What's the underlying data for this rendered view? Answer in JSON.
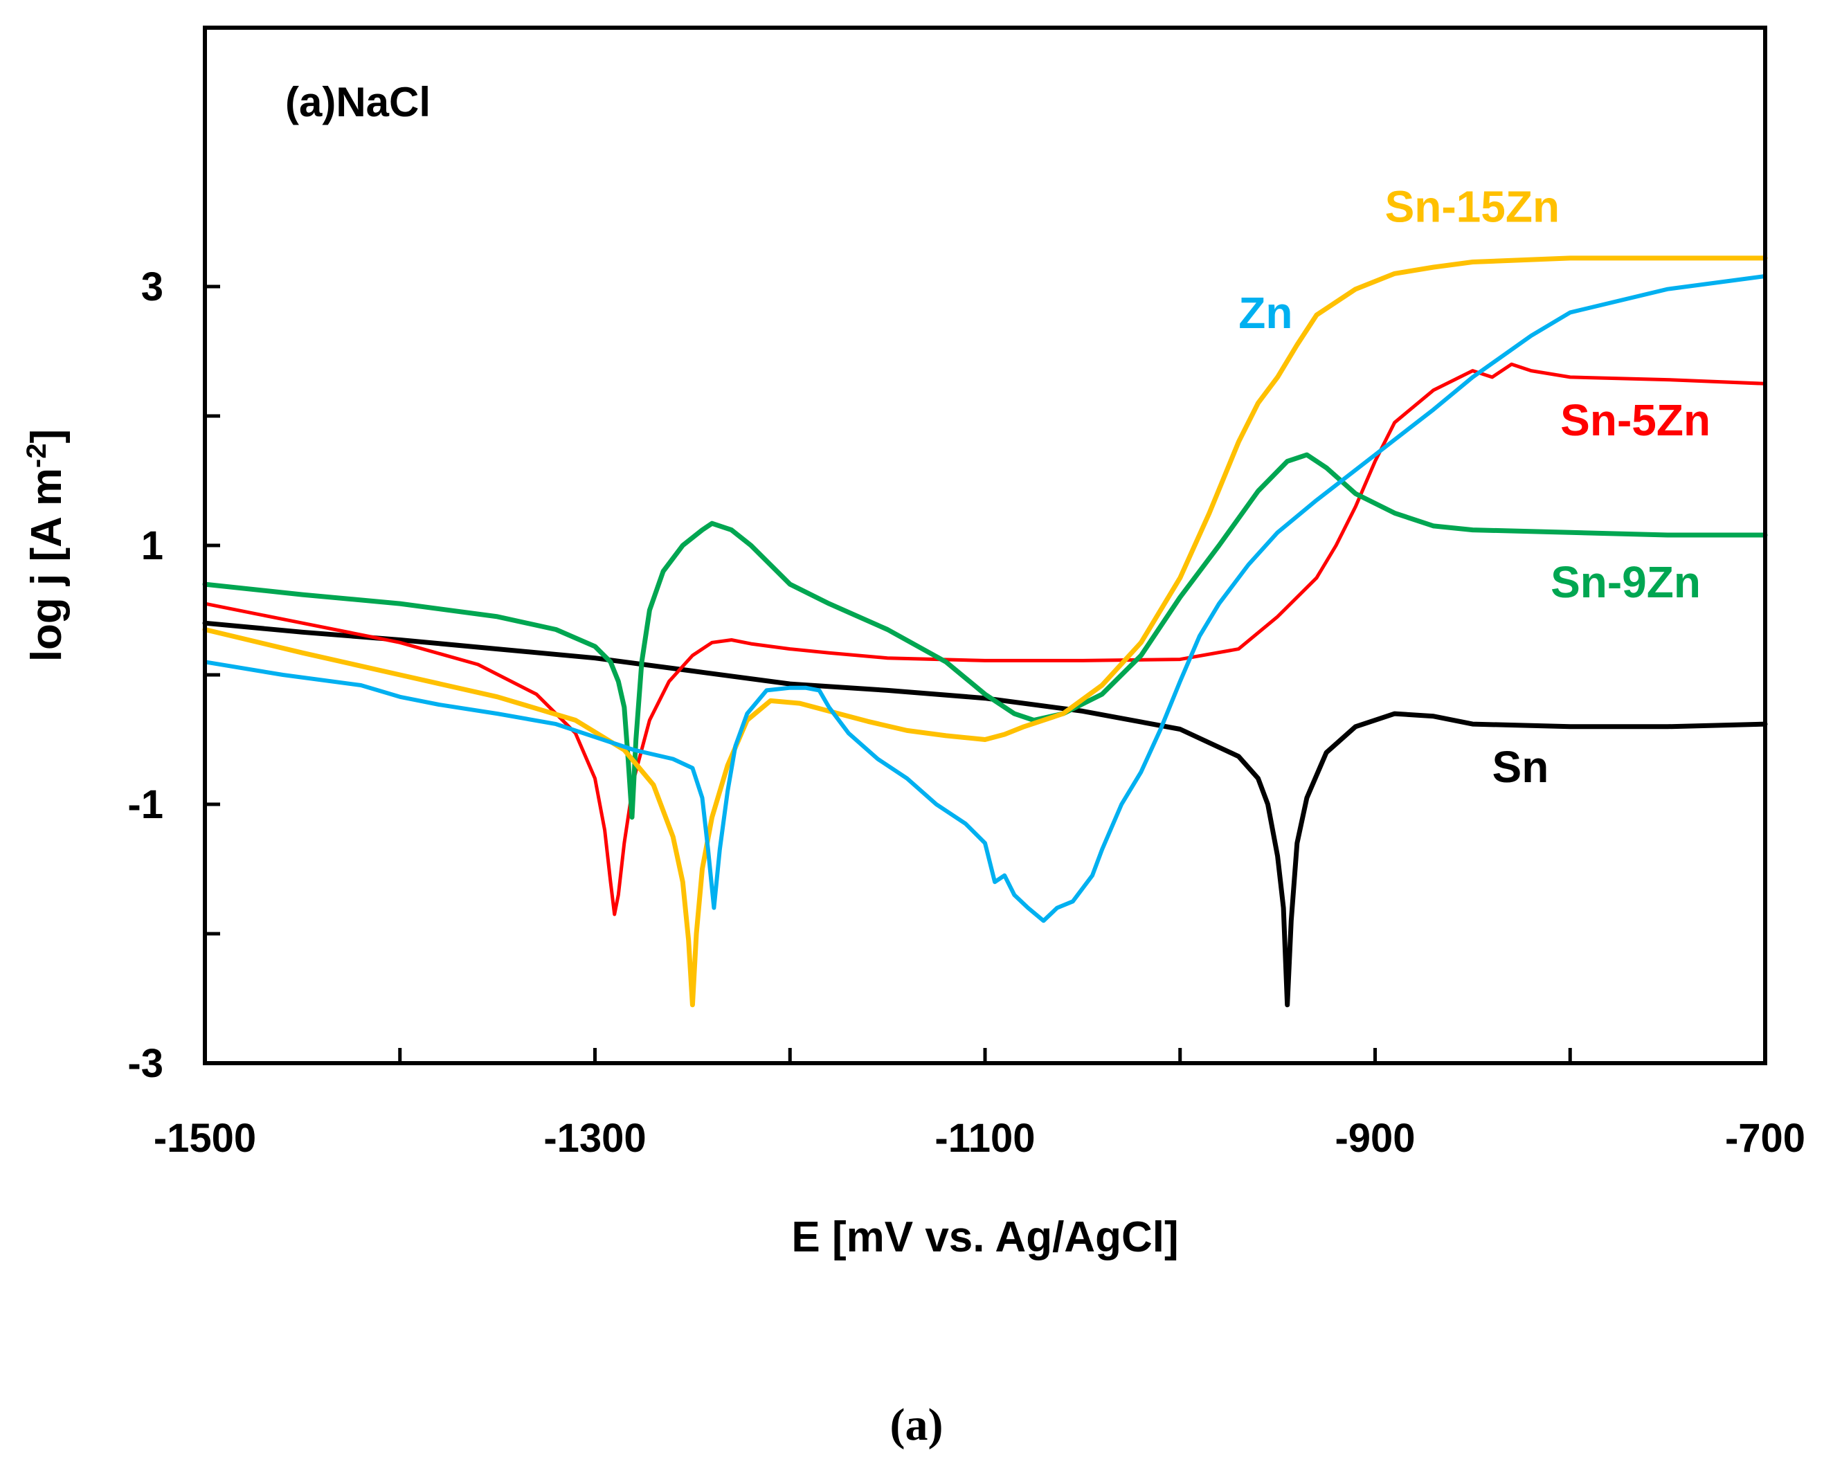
{
  "chart_data": {
    "type": "line",
    "title": "(a)NaCl",
    "xlabel": "E [mV vs. Ag/AgCl]",
    "ylabel_main": "log j [A m",
    "ylabel_sup": "-2",
    "ylabel_end": "]",
    "xlim": [
      -1500,
      -700
    ],
    "ylim": [
      -3,
      5
    ],
    "x_ticks": [
      -1500,
      -1300,
      -1100,
      -900,
      -700
    ],
    "x_minor_ticks": [
      -1400,
      -1200,
      -1000,
      -800
    ],
    "x_tick_labels": [
      "-1500",
      "-1300",
      "-1100",
      "-900",
      "-700"
    ],
    "y_ticks": [
      -3,
      -1,
      1,
      3
    ],
    "y_minor_ticks": [
      -2,
      0,
      2
    ],
    "y_tick_labels": [
      "-3",
      "-1",
      "1",
      "3"
    ],
    "grid": false,
    "caption": "(a)",
    "series": [
      {
        "name": "Sn",
        "label": "Sn",
        "color": "#000000",
        "width": 7,
        "x": [
          -1500,
          -1450,
          -1400,
          -1350,
          -1300,
          -1250,
          -1200,
          -1150,
          -1100,
          -1050,
          -1000,
          -970,
          -960,
          -955,
          -950,
          -947,
          -945,
          -943,
          -940,
          -935,
          -925,
          -910,
          -890,
          -870,
          -850,
          -800,
          -750,
          -700
        ],
        "y": [
          0.4,
          0.33,
          0.27,
          0.2,
          0.13,
          0.03,
          -0.07,
          -0.12,
          -0.18,
          -0.28,
          -0.42,
          -0.63,
          -0.8,
          -1.0,
          -1.4,
          -1.8,
          -2.55,
          -1.9,
          -1.3,
          -0.95,
          -0.6,
          -0.4,
          -0.3,
          -0.32,
          -0.38,
          -0.4,
          -0.4,
          -0.38
        ]
      },
      {
        "name": "Sn-5Zn",
        "label": "Sn-5Zn",
        "color": "#ff0000",
        "width": 5,
        "x": [
          -1500,
          -1450,
          -1400,
          -1360,
          -1330,
          -1310,
          -1300,
          -1295,
          -1292,
          -1290,
          -1288,
          -1285,
          -1280,
          -1272,
          -1262,
          -1250,
          -1240,
          -1230,
          -1220,
          -1200,
          -1180,
          -1150,
          -1100,
          -1050,
          -1000,
          -970,
          -950,
          -930,
          -920,
          -910,
          -900,
          -890,
          -870,
          -850,
          -840,
          -830,
          -820,
          -800,
          -750,
          -700
        ],
        "y": [
          0.55,
          0.4,
          0.25,
          0.08,
          -0.15,
          -0.45,
          -0.8,
          -1.2,
          -1.6,
          -1.85,
          -1.7,
          -1.3,
          -0.8,
          -0.35,
          -0.05,
          0.15,
          0.25,
          0.27,
          0.24,
          0.2,
          0.17,
          0.13,
          0.11,
          0.11,
          0.12,
          0.2,
          0.45,
          0.75,
          1.0,
          1.3,
          1.65,
          1.95,
          2.2,
          2.35,
          2.3,
          2.4,
          2.35,
          2.3,
          2.28,
          2.25
        ]
      },
      {
        "name": "Sn-9Zn",
        "label": "Sn-9Zn",
        "color": "#00a651",
        "width": 7,
        "x": [
          -1500,
          -1450,
          -1400,
          -1350,
          -1320,
          -1300,
          -1292,
          -1288,
          -1285,
          -1283,
          -1281,
          -1279,
          -1276,
          -1272,
          -1265,
          -1255,
          -1245,
          -1240,
          -1230,
          -1220,
          -1200,
          -1180,
          -1150,
          -1120,
          -1100,
          -1085,
          -1075,
          -1060,
          -1040,
          -1020,
          -1000,
          -980,
          -960,
          -945,
          -935,
          -925,
          -910,
          -890,
          -870,
          -850,
          -800,
          -750,
          -720,
          -700
        ],
        "y": [
          0.7,
          0.62,
          0.55,
          0.45,
          0.35,
          0.22,
          0.1,
          -0.05,
          -0.25,
          -0.65,
          -1.1,
          -0.5,
          0.1,
          0.5,
          0.8,
          1.0,
          1.12,
          1.17,
          1.12,
          1.0,
          0.7,
          0.55,
          0.35,
          0.1,
          -0.15,
          -0.3,
          -0.35,
          -0.3,
          -0.15,
          0.15,
          0.6,
          1.0,
          1.42,
          1.65,
          1.7,
          1.6,
          1.4,
          1.25,
          1.15,
          1.12,
          1.1,
          1.08,
          1.08,
          1.08
        ]
      },
      {
        "name": "Sn-15Zn",
        "label": "Sn-15Zn",
        "color": "#ffc000",
        "width": 7,
        "x": [
          -1500,
          -1450,
          -1400,
          -1350,
          -1310,
          -1285,
          -1270,
          -1260,
          -1255,
          -1252,
          -1250,
          -1248,
          -1245,
          -1240,
          -1232,
          -1222,
          -1210,
          -1195,
          -1180,
          -1160,
          -1140,
          -1120,
          -1100,
          -1090,
          -1080,
          -1060,
          -1040,
          -1020,
          -1000,
          -985,
          -970,
          -960,
          -950,
          -940,
          -930,
          -910,
          -890,
          -870,
          -850,
          -800,
          -750,
          -700
        ],
        "y": [
          0.35,
          0.17,
          0.0,
          -0.17,
          -0.35,
          -0.58,
          -0.85,
          -1.25,
          -1.6,
          -2.05,
          -2.55,
          -2.0,
          -1.5,
          -1.1,
          -0.7,
          -0.35,
          -0.2,
          -0.22,
          -0.28,
          -0.36,
          -0.43,
          -0.47,
          -0.5,
          -0.46,
          -0.4,
          -0.3,
          -0.08,
          0.25,
          0.75,
          1.25,
          1.8,
          2.1,
          2.3,
          2.55,
          2.78,
          2.98,
          3.1,
          3.15,
          3.19,
          3.22,
          3.22,
          3.22
        ]
      },
      {
        "name": "Zn",
        "label": "Zn",
        "color": "#00b0f0",
        "width": 6,
        "x": [
          -1500,
          -1460,
          -1420,
          -1400,
          -1380,
          -1350,
          -1320,
          -1300,
          -1280,
          -1260,
          -1250,
          -1245,
          -1242,
          -1239,
          -1236,
          -1232,
          -1228,
          -1222,
          -1212,
          -1200,
          -1192,
          -1185,
          -1180,
          -1170,
          -1155,
          -1140,
          -1125,
          -1110,
          -1100,
          -1095,
          -1090,
          -1085,
          -1078,
          -1070,
          -1063,
          -1055,
          -1045,
          -1040,
          -1030,
          -1020,
          -1010,
          -1000,
          -990,
          -980,
          -965,
          -950,
          -930,
          -900,
          -870,
          -850,
          -820,
          -800,
          -750,
          -700
        ],
        "y": [
          0.1,
          0.0,
          -0.08,
          -0.17,
          -0.23,
          -0.3,
          -0.38,
          -0.48,
          -0.58,
          -0.65,
          -0.72,
          -0.95,
          -1.35,
          -1.8,
          -1.35,
          -0.9,
          -0.55,
          -0.3,
          -0.12,
          -0.1,
          -0.1,
          -0.12,
          -0.25,
          -0.45,
          -0.65,
          -0.8,
          -1.0,
          -1.15,
          -1.3,
          -1.6,
          -1.55,
          -1.7,
          -1.8,
          -1.9,
          -1.8,
          -1.75,
          -1.55,
          -1.35,
          -1.0,
          -0.75,
          -0.42,
          -0.05,
          0.3,
          0.55,
          0.85,
          1.1,
          1.35,
          1.7,
          2.05,
          2.3,
          2.62,
          2.8,
          2.98,
          3.08
        ]
      }
    ]
  }
}
